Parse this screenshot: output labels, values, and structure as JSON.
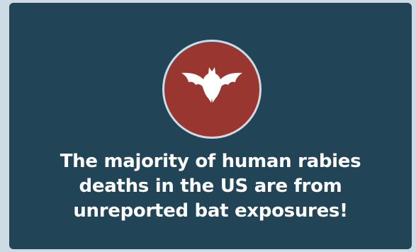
{
  "card": {
    "icon": "bat-icon",
    "message": "The majority of human rabies deaths in the US are from unreported bat exposures!"
  },
  "colors": {
    "page_background": "#cfdbe4",
    "card_background": "#214457",
    "badge_fill": "#993630",
    "badge_ring": "#c9dbe6",
    "text": "#ffffff"
  }
}
